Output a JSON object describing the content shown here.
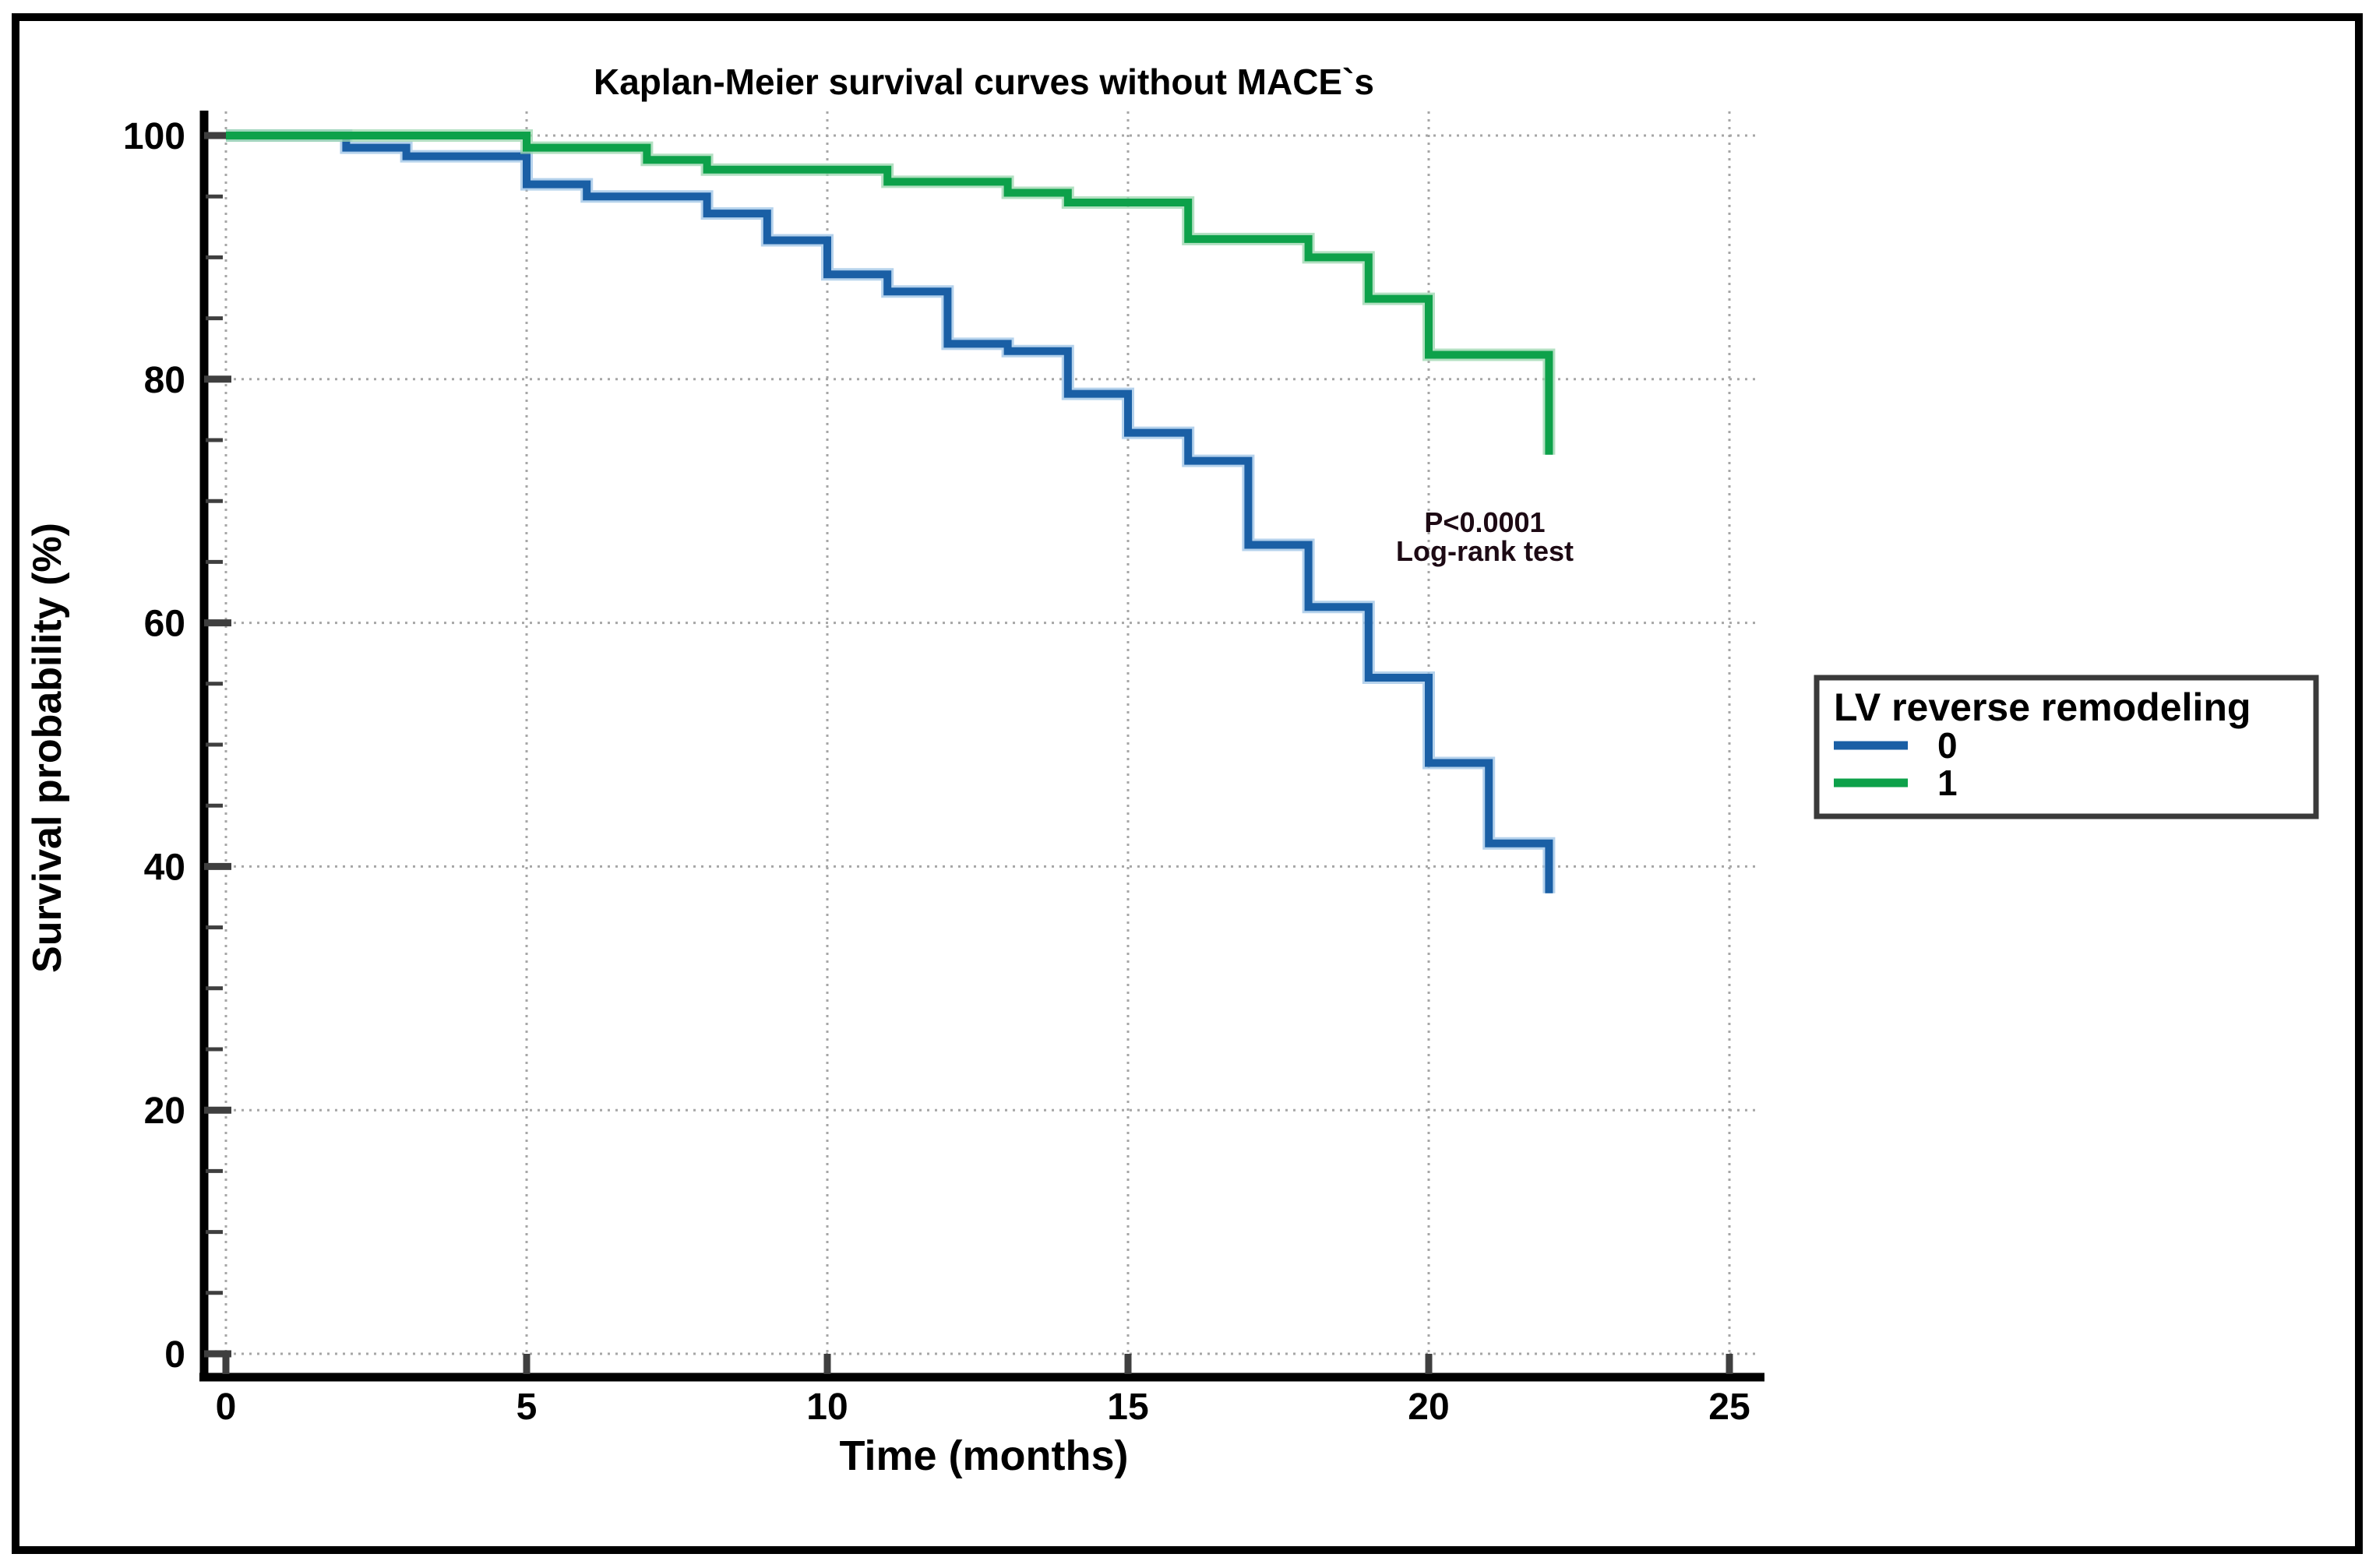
{
  "title": "Kaplan-Meier survival curves without MACE`s",
  "annotation": {
    "p_value": "P<0.0001",
    "test_name": "Log-rank test"
  },
  "legend": {
    "title": "LV reverse remodeling",
    "items": [
      {
        "label": "0",
        "color": "#1a5fa5",
        "halo": "#9cc3e5"
      },
      {
        "label": "1",
        "color": "#0da14a",
        "halo": "#9ad6ae"
      }
    ]
  },
  "chart_data": {
    "type": "line",
    "subtype": "kaplan-meier-step",
    "title": "Kaplan-Meier survival curves without MACE`s",
    "xlabel": "Time (months)",
    "ylabel": "Survival probability (%)",
    "xlim": [
      0,
      25
    ],
    "ylim": [
      0,
      100
    ],
    "x_ticks": [
      0,
      5,
      10,
      15,
      20,
      25
    ],
    "y_ticks": [
      0,
      20,
      40,
      60,
      80,
      100
    ],
    "y_minor_tick_step": 5,
    "grid": "dotted",
    "legend_position": "right-outside",
    "annotation": {
      "text": [
        "P<0.0001",
        "Log-rank test"
      ],
      "x": 19.5,
      "y": 67
    },
    "series": [
      {
        "name": "0",
        "color": "#1a5fa5",
        "steps": [
          [
            0,
            100
          ],
          [
            2,
            99
          ],
          [
            3,
            98.3
          ],
          [
            5,
            96
          ],
          [
            6,
            95
          ],
          [
            8,
            93.6
          ],
          [
            9,
            91.4
          ],
          [
            10,
            88.6
          ],
          [
            11,
            87.2
          ],
          [
            12,
            82.9
          ],
          [
            13,
            82.3
          ],
          [
            14,
            78.8
          ],
          [
            15,
            75.6
          ],
          [
            16,
            73.3
          ],
          [
            17,
            66.4
          ],
          [
            18,
            61.3
          ],
          [
            19,
            55.5
          ],
          [
            20,
            48.5
          ],
          [
            21,
            41.9
          ],
          [
            22,
            37.8
          ]
        ]
      },
      {
        "name": "1",
        "color": "#0da14a",
        "steps": [
          [
            0,
            100
          ],
          [
            5,
            99
          ],
          [
            7,
            98
          ],
          [
            8,
            97.2
          ],
          [
            11,
            96.2
          ],
          [
            13,
            95.3
          ],
          [
            14,
            94.5
          ],
          [
            16,
            91.5
          ],
          [
            18,
            90
          ],
          [
            19,
            86.6
          ],
          [
            20,
            82
          ],
          [
            22,
            73.8
          ]
        ]
      }
    ]
  },
  "colors": {
    "background": "#ffffff",
    "figure_border": "#000000",
    "axis_line": "#000000",
    "tick": "#3f3f3f",
    "gridline": "#a6a6a6",
    "text": "#000000",
    "annotation_text": "#1d0a14",
    "legend_border": "#3a3a3a"
  }
}
